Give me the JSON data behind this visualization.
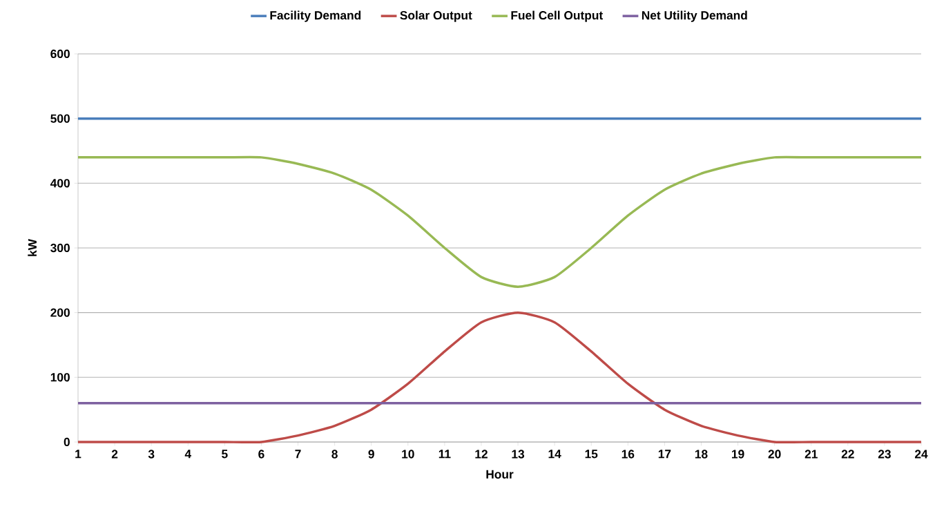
{
  "chart_data": {
    "type": "line",
    "xlabel": "Hour",
    "ylabel": "kW",
    "categories": [
      "1",
      "2",
      "3",
      "4",
      "5",
      "6",
      "7",
      "8",
      "9",
      "10",
      "11",
      "12",
      "13",
      "14",
      "15",
      "16",
      "17",
      "18",
      "19",
      "20",
      "21",
      "22",
      "23",
      "24"
    ],
    "series": [
      {
        "name": "Facility Demand",
        "color": "#4a7ebb",
        "values": [
          500,
          500,
          500,
          500,
          500,
          500,
          500,
          500,
          500,
          500,
          500,
          500,
          500,
          500,
          500,
          500,
          500,
          500,
          500,
          500,
          500,
          500,
          500,
          500
        ]
      },
      {
        "name": "Solar Output",
        "color": "#be4b48",
        "values": [
          0,
          0,
          0,
          0,
          0,
          0,
          10,
          25,
          50,
          90,
          140,
          185,
          200,
          185,
          140,
          90,
          50,
          25,
          10,
          0,
          0,
          0,
          0,
          0
        ]
      },
      {
        "name": "Fuel Cell Output",
        "color": "#98b954",
        "values": [
          440,
          440,
          440,
          440,
          440,
          440,
          430,
          415,
          390,
          350,
          300,
          255,
          240,
          255,
          300,
          350,
          390,
          415,
          430,
          440,
          440,
          440,
          440,
          440
        ]
      },
      {
        "name": "Net Utility Demand",
        "color": "#7d60a0",
        "values": [
          60,
          60,
          60,
          60,
          60,
          60,
          60,
          60,
          60,
          60,
          60,
          60,
          60,
          60,
          60,
          60,
          60,
          60,
          60,
          60,
          60,
          60,
          60,
          60
        ]
      }
    ],
    "ylim": [
      0,
      600
    ],
    "yticks": [
      0,
      100,
      200,
      300,
      400,
      500,
      600
    ],
    "grid": "y",
    "legend": "top",
    "marker": "none"
  }
}
